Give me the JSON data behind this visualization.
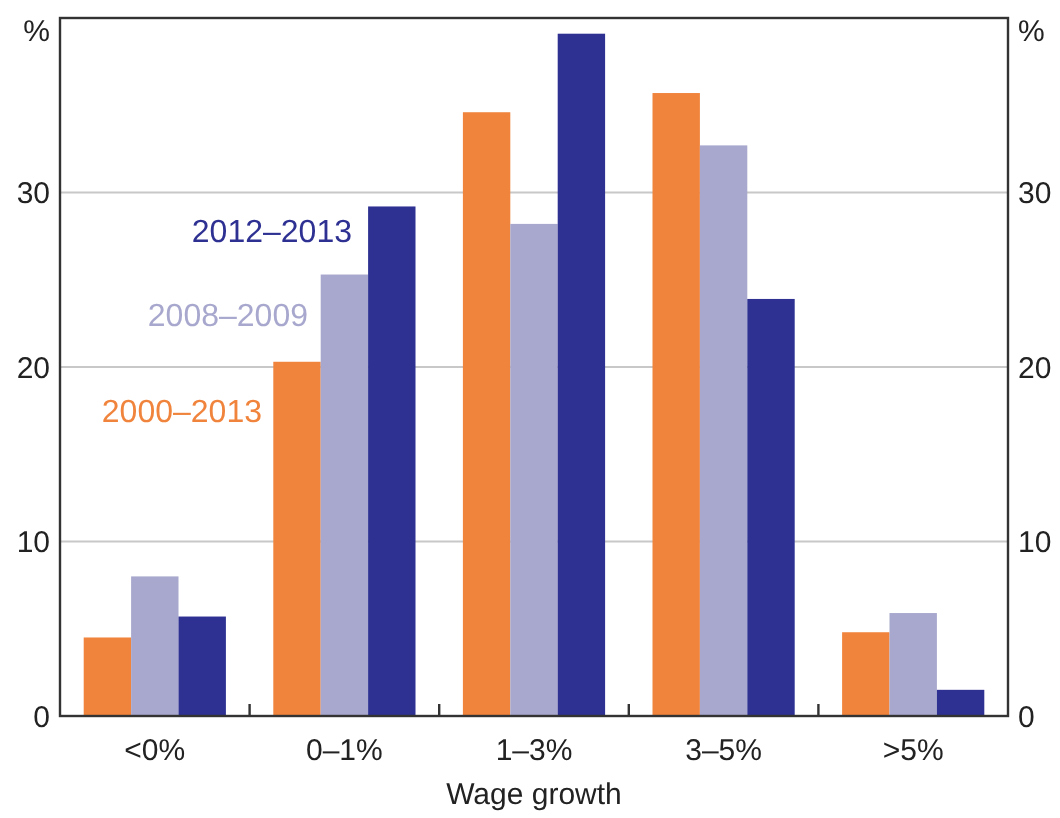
{
  "chart_data": {
    "type": "bar",
    "xlabel": "Wage growth",
    "ylabel": "%",
    "y2label": "%",
    "categories": [
      "<0%",
      "0–1%",
      "1–3%",
      "3–5%",
      ">5%"
    ],
    "series": [
      {
        "name": "2000–2013",
        "color": "#f0843c",
        "values": [
          4.5,
          20.3,
          34.6,
          35.7,
          4.8
        ]
      },
      {
        "name": "2008–2009",
        "color": "#a8a8ce",
        "values": [
          8.0,
          25.3,
          28.2,
          32.7,
          5.9
        ]
      },
      {
        "name": "2012–2013",
        "color": "#2e3192",
        "values": [
          5.7,
          29.2,
          39.1,
          23.9,
          1.5
        ]
      }
    ],
    "ylim": [
      0,
      40
    ],
    "yticks": [
      0,
      10,
      20,
      30
    ],
    "y2lim": [
      0,
      40
    ],
    "y2ticks": [
      0,
      10,
      20,
      30
    ],
    "grid": "y",
    "legend": false
  }
}
